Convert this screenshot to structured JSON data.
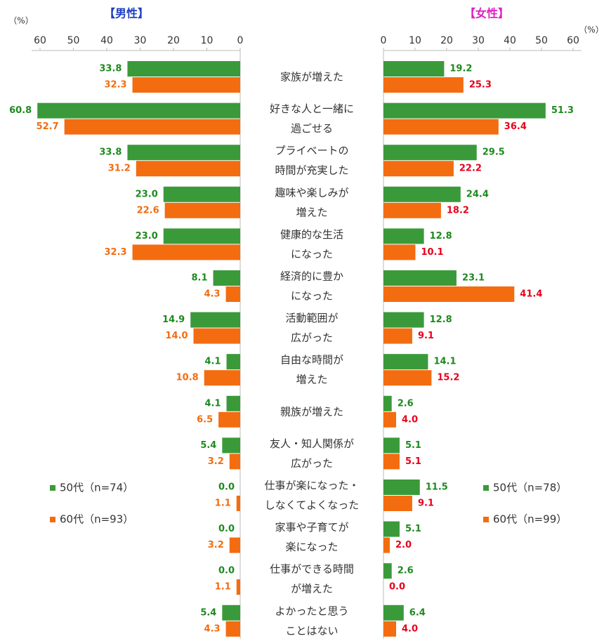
{
  "chart_data": {
    "type": "butterfly",
    "categories": [
      [
        "家族が増えた"
      ],
      [
        "好きな人と一緒に",
        "過ごせる"
      ],
      [
        "プライベートの",
        "時間が充実した"
      ],
      [
        "趣味や楽しみが",
        "増えた"
      ],
      [
        "健康的な生活",
        "になった"
      ],
      [
        "経済的に豊か",
        "になった"
      ],
      [
        "活動範囲が",
        "広がった"
      ],
      [
        "自由な時間が",
        "増えた"
      ],
      [
        "親族が増えた"
      ],
      [
        "友人・知人関係が",
        "広がった"
      ],
      [
        "仕事が楽になった・",
        "しなくてよくなった"
      ],
      [
        "家事や子育てが",
        "楽になった"
      ],
      [
        "仕事ができる時間",
        "が増えた"
      ],
      [
        "よかったと思う",
        "ことはない"
      ]
    ],
    "left": {
      "title": "【男性】",
      "title_color": "#1f3fbf",
      "unit": "（%）",
      "xlim": [
        0,
        60
      ],
      "xticks": [
        0,
        10,
        20,
        30,
        40,
        50,
        60
      ],
      "series": [
        {
          "name": "50代（n=74）",
          "color": "#3a9a3a",
          "label_color": "#1e8a1e",
          "values": [
            33.8,
            60.8,
            33.8,
            23,
            23,
            8.1,
            14.9,
            4.1,
            4.1,
            5.4,
            0,
            0,
            0,
            5.4
          ],
          "value_labels": [
            "33.8",
            "60.8",
            "33.8",
            "23.0",
            "23.0",
            "8.1",
            "14.9",
            "4.1",
            "4.1",
            "5.4",
            "0.0",
            "0.0",
            "0.0",
            "5.4"
          ]
        },
        {
          "name": "60代（n=93）",
          "color": "#f36c10",
          "label_color": "#f36c10",
          "values": [
            32.3,
            52.7,
            31.2,
            22.6,
            32.3,
            4.3,
            14,
            10.8,
            6.5,
            3.2,
            1.1,
            3.2,
            1.1,
            4.3
          ],
          "value_labels": [
            "32.3",
            "52.7",
            "31.2",
            "22.6",
            "32.3",
            "4.3",
            "14.0",
            "10.8",
            "6.5",
            "3.2",
            "1.1",
            "3.2",
            "1.1",
            "4.3"
          ]
        }
      ]
    },
    "right": {
      "title": "【女性】",
      "title_color": "#e020c0",
      "unit": "（%）",
      "xlim": [
        0,
        60
      ],
      "xticks": [
        0,
        10,
        20,
        30,
        40,
        50,
        60
      ],
      "series": [
        {
          "name": "50代（n=78）",
          "color": "#3a9a3a",
          "label_color": "#1e8a1e",
          "values": [
            19.2,
            51.3,
            29.5,
            24.4,
            12.8,
            23.1,
            12.8,
            14.1,
            2.6,
            5.1,
            11.5,
            5.1,
            2.6,
            6.4
          ],
          "value_labels": [
            "19.2",
            "51.3",
            "29.5",
            "24.4",
            "12.8",
            "23.1",
            "12.8",
            "14.1",
            "2.6",
            "5.1",
            "11.5",
            "5.1",
            "2.6",
            "6.4"
          ]
        },
        {
          "name": "60代（n=99）",
          "color": "#f36c10",
          "label_color": "#e8001c",
          "values": [
            25.3,
            36.4,
            22.2,
            18.2,
            10.1,
            41.4,
            9.1,
            15.2,
            4,
            5.1,
            9.1,
            2,
            0,
            4
          ],
          "value_labels": [
            "25.3",
            "36.4",
            "22.2",
            "18.2",
            "10.1",
            "41.4",
            "9.1",
            "15.2",
            "4.0",
            "5.1",
            "9.1",
            "2.0",
            "0.0",
            "4.0"
          ]
        }
      ]
    }
  }
}
